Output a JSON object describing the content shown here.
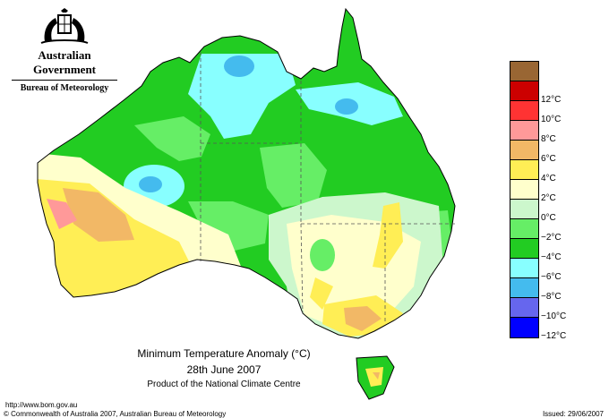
{
  "branding": {
    "government": "Australian Government",
    "bureau": "Bureau of Meteorology"
  },
  "caption": {
    "title": "Minimum Temperature Anomaly (°C)",
    "date": "28th June 2007",
    "product": "Product of the National Climate Centre"
  },
  "legend": {
    "entries": [
      {
        "label": "",
        "color": "#996633"
      },
      {
        "label": "12°C",
        "color": "#cc0000"
      },
      {
        "label": "10°C",
        "color": "#ff3333"
      },
      {
        "label": "8°C",
        "color": "#ff9999"
      },
      {
        "label": "6°C",
        "color": "#f2b866"
      },
      {
        "label": "4°C",
        "color": "#ffee55"
      },
      {
        "label": "2°C",
        "color": "#ffffcc"
      },
      {
        "label": "0°C",
        "color": "#ccf7cc"
      },
      {
        "label": "−2°C",
        "color": "#66ee66"
      },
      {
        "label": "−4°C",
        "color": "#22cc22"
      },
      {
        "label": "−6°C",
        "color": "#88ffff"
      },
      {
        "label": "−8°C",
        "color": "#44bbee"
      },
      {
        "label": "−10°C",
        "color": "#6666ee"
      },
      {
        "label": "−12°C",
        "color": "#0000ff"
      }
    ]
  },
  "footer": {
    "url": "http://www.bom.gov.au",
    "copyright": "© Commonwealth of Australia 2007, Australian Bureau of Meteorology",
    "issued": "Issued: 29/06/2007"
  }
}
